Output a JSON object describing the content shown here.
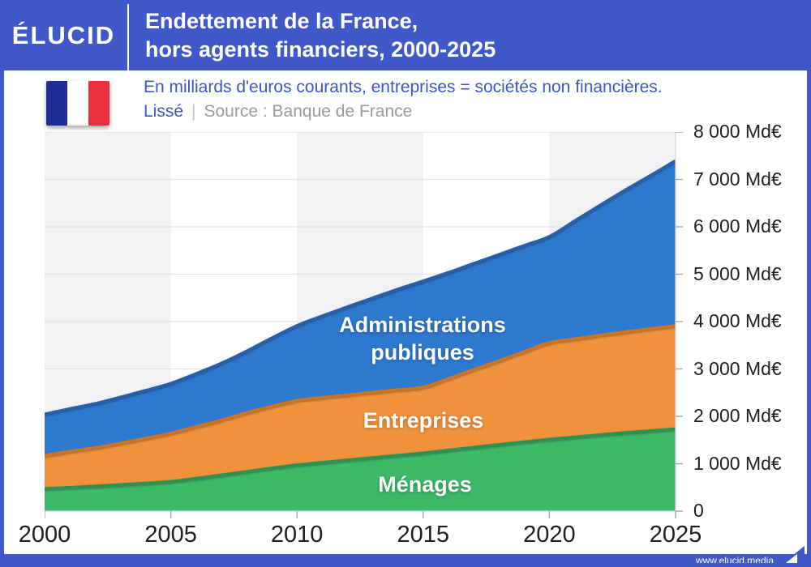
{
  "header": {
    "logo": "ÉLUCID",
    "title_line1": "Endettement de la France,",
    "title_line2": "hors agents financiers, 2000-2025"
  },
  "subtitle": {
    "line1": "En milliards d'euros courants, entreprises = sociétés non financières.",
    "smoothing": "Lissé",
    "separator": "|",
    "source": "Source : Banque de France"
  },
  "colors": {
    "header_bg": "#4159c8",
    "subtitle_blue": "#3c55c8",
    "source_gray": "#9a9aa0",
    "band_gray": "#f2f2f4",
    "grid_gray": "#e3e3e7",
    "axis_line": "#d5d5da",
    "tick_gray": "#a9a9af",
    "text_dark": "#1f1f23",
    "flag_blue": "#1f2d94",
    "flag_white": "#ffffff",
    "flag_red": "#e8303e"
  },
  "chart_data": {
    "type": "area",
    "stacked": true,
    "title": "Endettement de la France, hors agents financiers, 2000-2025",
    "unit": "Md€",
    "xlabel": "",
    "ylabel": "Milliards d'euros courants",
    "ylim": [
      0,
      8000
    ],
    "ytick_step": 1000,
    "grid": "horizontal",
    "legend_position": "labels-inside-areas",
    "x": [
      2000,
      2001,
      2002,
      2003,
      2004,
      2005,
      2006,
      2007,
      2008,
      2009,
      2010,
      2011,
      2012,
      2013,
      2014,
      2015,
      2016,
      2017,
      2018,
      2019,
      2020,
      2021,
      2022,
      2023,
      2024,
      2025
    ],
    "series": [
      {
        "name": "Ménages",
        "color": "#3cba68",
        "stroke": "#2e9152",
        "values": [
          480,
          505,
          532,
          562,
          595,
          630,
          695,
          765,
          840,
          912,
          980,
          1032,
          1082,
          1132,
          1182,
          1230,
          1290,
          1350,
          1408,
          1465,
          1520,
          1568,
          1615,
          1660,
          1700,
          1740
        ]
      },
      {
        "name": "Entreprises",
        "color": "#f0923d",
        "stroke": "#cf7420",
        "values": [
          700,
          760,
          810,
          875,
          945,
          1020,
          1090,
          1160,
          1240,
          1305,
          1360,
          1370,
          1375,
          1380,
          1385,
          1390,
          1510,
          1640,
          1770,
          1905,
          2040,
          2070,
          2100,
          2128,
          2155,
          2180
        ]
      },
      {
        "name": "Administrations publiques",
        "color": "#2e79d0",
        "stroke": "#2a5fa8",
        "values": [
          870,
          900,
          930,
          970,
          1010,
          1050,
          1120,
          1200,
          1300,
          1440,
          1580,
          1720,
          1860,
          1990,
          2120,
          2240,
          2240,
          2240,
          2240,
          2240,
          2240,
          2490,
          2740,
          2990,
          3230,
          3480
        ]
      }
    ],
    "ytick_labels": [
      "0",
      "1 000 Md€",
      "2 000 Md€",
      "3 000 Md€",
      "4 000 Md€",
      "5 000 Md€",
      "6 000 Md€",
      "7 000 Md€",
      "8 000 Md€"
    ],
    "xticks": [
      2000,
      2005,
      2010,
      2015,
      2020,
      2025
    ],
    "xtick_labels": [
      "2000",
      "2005",
      "2010",
      "2015",
      "2020",
      "2025"
    ],
    "band_intervals": [
      [
        2000,
        2005
      ],
      [
        2010,
        2015
      ],
      [
        2020,
        2025
      ]
    ]
  },
  "footer": {
    "url": "www.elucid.media"
  }
}
